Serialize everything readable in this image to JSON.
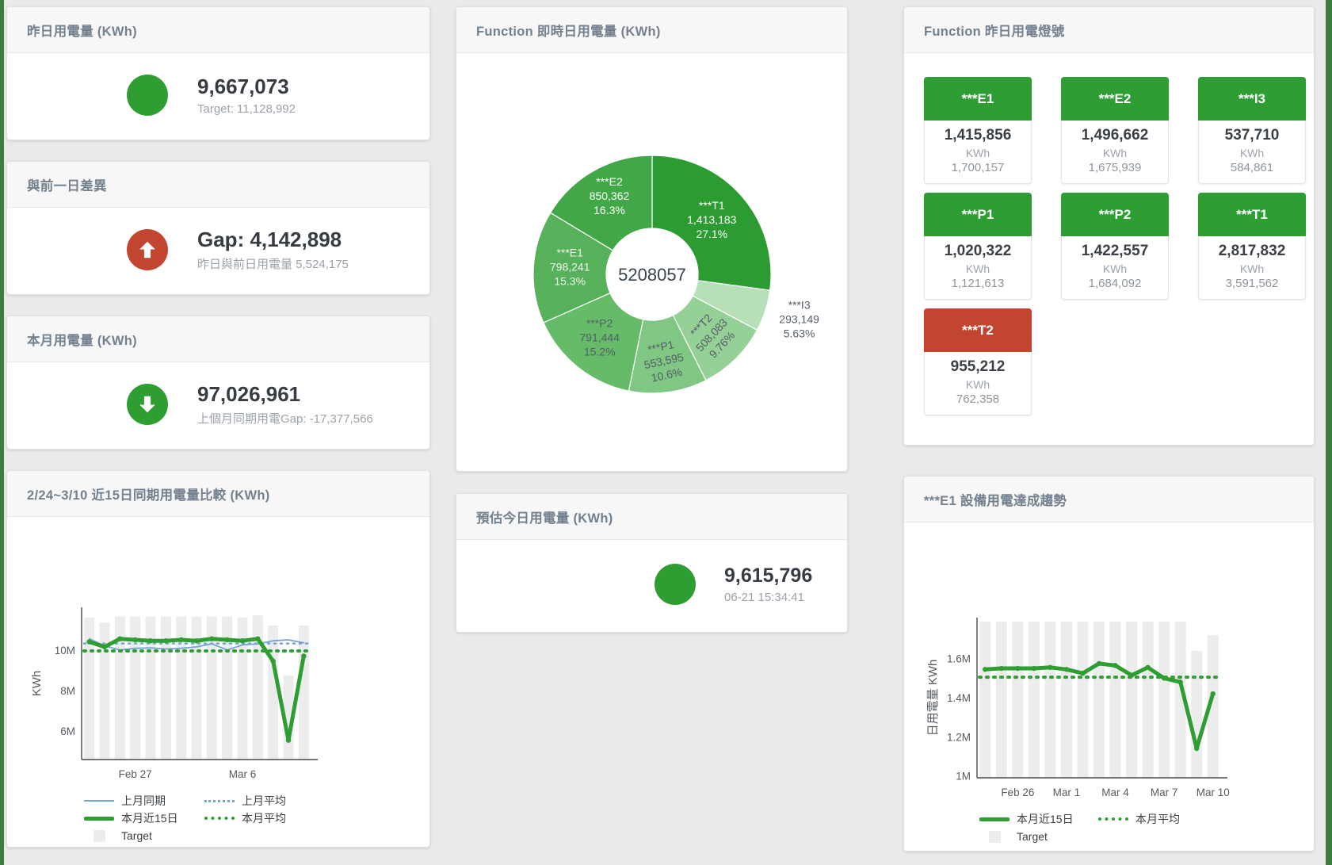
{
  "colors": {
    "green": "#2e9e33",
    "red": "#c2452f",
    "blue": "#74a3d6",
    "target_bar": "#ececec",
    "edge_green": "#3e7c42"
  },
  "cards": {
    "yesterday": {
      "title": "昨日用電量 (KWh)",
      "value": "9,667,073",
      "subtitle": "Target: 11,128,992",
      "status_color": "#2e9e33"
    },
    "gap": {
      "title": "與前一日差異",
      "value": "Gap: 4,142,898",
      "subtitle": "昨日與前日用電量 5,524,175",
      "status_color": "#c2452f",
      "icon": "arrow-up-icon"
    },
    "month": {
      "title": "本月用電量 (KWh)",
      "value": "97,026,961",
      "subtitle": "上個月同期用電Gap: -17,377,566",
      "status_color": "#2e9e33",
      "icon": "arrow-down-icon"
    },
    "realtime": {
      "title": "Function 即時日用電量 (KWh)"
    },
    "estimate": {
      "title": "預估今日用電量 (KWh)",
      "value": "9,615,796",
      "subtitle": "06-21 15:34:41",
      "status_color": "#2e9e33"
    },
    "lights": {
      "title": "Function 昨日用電燈號",
      "tiles": [
        {
          "label": "***E1",
          "value": "1,415,856",
          "unit": "KWh",
          "target": "1,700,157",
          "color_hex": "#2e9e34"
        },
        {
          "label": "***E2",
          "value": "1,496,662",
          "unit": "KWh",
          "target": "1,675,939",
          "color_hex": "#2e9e34"
        },
        {
          "label": "***I3",
          "value": "537,710",
          "unit": "KWh",
          "target": "584,861",
          "color_hex": "#2e9e34"
        },
        {
          "label": "***P1",
          "value": "1,020,322",
          "unit": "KWh",
          "target": "1,121,613",
          "color_hex": "#2e9e34"
        },
        {
          "label": "***P2",
          "value": "1,422,557",
          "unit": "KWh",
          "target": "1,684,092",
          "color_hex": "#2e9e34"
        },
        {
          "label": "***T1",
          "value": "2,817,832",
          "unit": "KWh",
          "target": "3,591,562",
          "color_hex": "#2e9e34"
        },
        {
          "label": "***T2",
          "value": "955,212",
          "unit": "KWh",
          "target": "762,358",
          "color_hex": "#c2452f"
        }
      ]
    },
    "compare": {
      "title": "2/24~3/10 近15日同期用電量比較 (KWh)"
    },
    "e1trend": {
      "title": "***E1 設備用電達成趨勢"
    }
  },
  "chart_data": [
    {
      "type": "pie",
      "title": "Function 即時日用電量 (KWh)",
      "center_total": "5208057",
      "legend_position": "none",
      "segments": [
        {
          "name": "***T1",
          "value": 1413183,
          "value_label": "1,413,183",
          "pct": "27.1%",
          "color": "#2c9b31",
          "label_color": "#ffffff",
          "label_r": 100,
          "rotation": 0,
          "outside": false
        },
        {
          "name": "***I3",
          "value": 293149,
          "value_label": "293,149",
          "pct": "5.63%",
          "color": "#b7dfb8",
          "label_color": "#555e68",
          "label_r": 195,
          "rotation": 0,
          "outside": true
        },
        {
          "name": "***T2",
          "value": 508083,
          "value_label": "508,083",
          "pct": "9.76%",
          "color": "#95d097",
          "label_color": "#555e68",
          "label_r": 110,
          "rotation": -47,
          "outside": false
        },
        {
          "name": "***P1",
          "value": 553595,
          "value_label": "553,595",
          "pct": "10.6%",
          "color": "#7fc782",
          "label_color": "#555e68",
          "label_r": 113,
          "rotation": -12,
          "outside": false
        },
        {
          "name": "***P2",
          "value": 791444,
          "value_label": "791,444",
          "pct": "15.2%",
          "color": "#65bb68",
          "label_color": "#555e68",
          "label_r": 106,
          "rotation": 0,
          "outside": false
        },
        {
          "name": "***E1",
          "value": 798241,
          "value_label": "798,241",
          "pct": "15.3%",
          "color": "#57b15a",
          "label_color": "#eef4ee",
          "label_r": 104,
          "rotation": 0,
          "outside": false
        },
        {
          "name": "***E2",
          "value": 850362,
          "value_label": "850,362",
          "pct": "16.3%",
          "color": "#42a847",
          "label_color": "#ffffff",
          "label_r": 110,
          "rotation": 0,
          "outside": false
        }
      ]
    },
    {
      "type": "line+bar",
      "title": "2/24~3/10 近15日同期用電量比較 (KWh)",
      "ylabel": "KWh",
      "ylim": [
        4.6,
        12.1
      ],
      "grid": false,
      "yticks": [
        {
          "v": 6,
          "label": "6M"
        },
        {
          "v": 8,
          "label": "8M"
        },
        {
          "v": 10,
          "label": "10M"
        }
      ],
      "categories": [
        "Feb 24",
        "Feb 25",
        "Feb 26",
        "Feb 27",
        "Feb 28",
        "Mar 1",
        "Mar 2",
        "Mar 3",
        "Mar 4",
        "Mar 5",
        "Mar 6",
        "Mar 7",
        "Mar 8",
        "Mar 9",
        "Mar 10"
      ],
      "xticks": [
        {
          "i": 3,
          "label": "Feb 27"
        },
        {
          "i": 10,
          "label": "Mar 6"
        }
      ],
      "bars": {
        "name": "Target",
        "color": "#ececec",
        "values": [
          11.6,
          11.35,
          11.65,
          11.65,
          11.65,
          11.65,
          11.65,
          11.65,
          11.65,
          11.65,
          11.6,
          11.7,
          11.2,
          8.75,
          11.2
        ]
      },
      "series": [
        {
          "name": "上月同期",
          "color": "#74a3d6",
          "width": 1.8,
          "dash": "",
          "markers": false,
          "values": [
            10.55,
            10.2,
            10.0,
            10.08,
            10.1,
            10.05,
            10.08,
            10.15,
            10.3,
            10.0,
            10.25,
            10.3,
            10.45,
            10.5,
            10.35
          ]
        },
        {
          "name": "上月平均",
          "color": "#74a3d6",
          "width": 2.5,
          "dash": "2 6",
          "avg": 10.32
        },
        {
          "name": "本月近15日",
          "color": "#2e9e33",
          "width": 5,
          "dash": "",
          "markers": true,
          "values": [
            10.4,
            10.15,
            10.55,
            10.5,
            10.45,
            10.45,
            10.5,
            10.45,
            10.55,
            10.5,
            10.45,
            10.55,
            9.45,
            5.55,
            9.7
          ]
        },
        {
          "name": "本月平均",
          "color": "#2e9e33",
          "width": 4,
          "dash": "2 7",
          "avg": 9.95
        }
      ],
      "legend": [
        "上月同期",
        "上月平均",
        "本月近15日",
        "本月平均",
        "Target"
      ]
    },
    {
      "type": "line+bar",
      "title": "***E1 設備用電達成趨勢",
      "ylabel": "日用電量 KWh",
      "ylim": [
        0.99,
        1.81
      ],
      "grid": false,
      "yticks": [
        {
          "v": 1,
          "label": "1M"
        },
        {
          "v": 1.2,
          "label": "1.2M"
        },
        {
          "v": 1.4,
          "label": "1.4M"
        },
        {
          "v": 1.6,
          "label": "1.6M"
        }
      ],
      "categories": [
        "Feb 24",
        "Feb 25",
        "Feb 26",
        "Feb 27",
        "Feb 28",
        "Mar 1",
        "Mar 2",
        "Mar 3",
        "Mar 4",
        "Mar 5",
        "Mar 6",
        "Mar 7",
        "Mar 8",
        "Mar 9",
        "Mar 10"
      ],
      "xticks": [
        {
          "i": 2,
          "label": "Feb 26"
        },
        {
          "i": 5,
          "label": "Mar 1"
        },
        {
          "i": 8,
          "label": "Mar 4"
        },
        {
          "i": 11,
          "label": "Mar 7"
        },
        {
          "i": 14,
          "label": "Mar 10"
        }
      ],
      "bars": {
        "name": "Target",
        "color": "#ececec",
        "values": [
          1.79,
          1.79,
          1.79,
          1.79,
          1.79,
          1.79,
          1.79,
          1.79,
          1.79,
          1.79,
          1.79,
          1.79,
          1.79,
          1.64,
          1.72
        ]
      },
      "series": [
        {
          "name": "本月近15日",
          "color": "#2e9e33",
          "width": 5,
          "dash": "",
          "markers": true,
          "values": [
            1.545,
            1.55,
            1.55,
            1.55,
            1.555,
            1.545,
            1.525,
            1.575,
            1.565,
            1.515,
            1.555,
            1.5,
            1.48,
            1.14,
            1.42
          ]
        },
        {
          "name": "本月平均",
          "color": "#2e9e33",
          "width": 4,
          "dash": "2 7",
          "avg": 1.505
        }
      ],
      "legend": [
        "本月近15日",
        "本月平均",
        "Target"
      ]
    }
  ]
}
